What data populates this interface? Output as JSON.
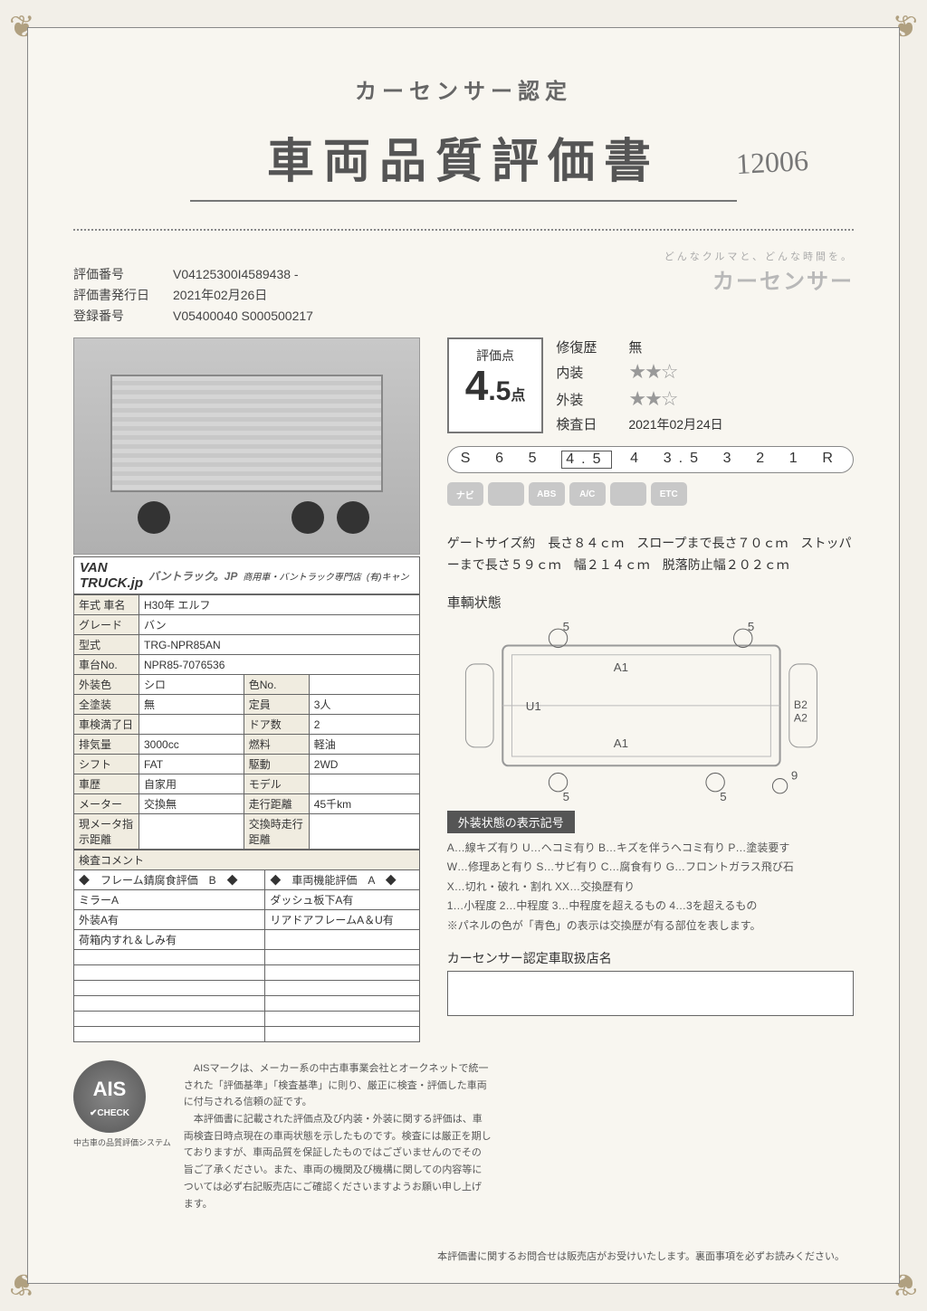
{
  "header": {
    "subtitle": "カーセンサー認定",
    "title": "車両品質評価書",
    "handwritten": "12006",
    "brand_tagline": "どんなクルマと、どんな時間を。",
    "brand_logo": "カーセンサー"
  },
  "meta": {
    "eval_no_label": "評価番号",
    "eval_no": "V04125300I4589438 -",
    "issue_date_label": "評価書発行日",
    "issue_date": "2021年02月26日",
    "reg_no_label": "登録番号",
    "reg_no": "V05400040 S000500217"
  },
  "banner": {
    "line1": "バントラック.jp",
    "logo1": "VAN",
    "logo2": "TRUCK.jp",
    "sub": "商用車・バントラック専門店",
    "tail": "(有)キャン"
  },
  "spec_rows": [
    [
      "年式 車名",
      "H30年  エルフ",
      "",
      "",
      ""
    ],
    [
      "グレード",
      "バン",
      "",
      "",
      ""
    ],
    [
      "型式",
      "TRG-NPR85AN",
      "",
      "",
      ""
    ],
    [
      "車台No.",
      "NPR85-7076536",
      "",
      "",
      ""
    ],
    [
      "外装色",
      "シロ",
      "色No.",
      "",
      ""
    ],
    [
      "全塗装",
      "無",
      "定員",
      "3人",
      ""
    ],
    [
      "車検満了日",
      "",
      "ドア数",
      "2",
      ""
    ],
    [
      "排気量",
      "3000cc",
      "燃料",
      "軽油",
      ""
    ],
    [
      "シフト",
      "FAT",
      "駆動",
      "2WD",
      ""
    ],
    [
      "車歴",
      "自家用",
      "モデル",
      "",
      ""
    ],
    [
      "メーター",
      "交換無",
      "走行距離",
      "45千km",
      ""
    ],
    [
      "現メータ指示距離",
      "",
      "交換時走行距離",
      "",
      ""
    ]
  ],
  "comment_header": "検査コメント",
  "comment_rows": [
    [
      "◆　フレーム錆腐食評価　B　◆",
      "◆　車両機能評価　A　◆"
    ],
    [
      "ミラーA",
      "ダッシュ板下A有"
    ],
    [
      "外装A有",
      "リアドアフレームA＆U有"
    ],
    [
      "荷箱内すれ＆しみ有",
      ""
    ],
    [
      "",
      ""
    ],
    [
      "",
      ""
    ],
    [
      "",
      ""
    ],
    [
      "",
      ""
    ],
    [
      "",
      ""
    ],
    [
      "",
      ""
    ]
  ],
  "score": {
    "label": "評価点",
    "value_int": "4",
    "value_dec": ".5",
    "unit": "点",
    "repair_label": "修復歴",
    "repair_value": "無",
    "interior_label": "内装",
    "interior_stars": "★★☆",
    "exterior_label": "外装",
    "exterior_stars": "★★☆",
    "inspect_label": "検査日",
    "inspect_value": "2021年02月24日"
  },
  "scale": [
    "S",
    "6",
    "5",
    "4.5",
    "4",
    "3.5",
    "3",
    "2",
    "1",
    "R"
  ],
  "scale_selected": "4.5",
  "badges": [
    "ナビ",
    "",
    "ABS",
    "A/C",
    "",
    "ETC"
  ],
  "gate_text": "ゲートサイズ約　長さ８４ｃｍ　スロープまで長さ７０ｃｍ　ストッパーまで長さ５９ｃｍ　幅２１４ｃｍ　脱落防止幅２０２ｃｍ",
  "diagram_title": "車輌状態",
  "diagram_marks": [
    "5",
    "5",
    "A1",
    "U1",
    "B2",
    "A2",
    "A1",
    "5",
    "5",
    "9"
  ],
  "legend_title": "外装状態の表示記号",
  "legend_lines": [
    "A…線キズ有り U…ヘコミ有り B…キズを伴うヘコミ有り P…塗装要す",
    "W…修理あと有り S…サビ有り C…腐食有り G…フロントガラス飛び石",
    "X…切れ・破れ・割れ XX…交換歴有り",
    "1…小程度 2…中程度 3…中程度を超えるもの 4…3を超えるもの",
    "※パネルの色が「青色」の表示は交換歴が有る部位を表します。"
  ],
  "dealer_label": "カーセンサー認定車取扱店名",
  "ais": {
    "logo_big": "AIS",
    "logo_small": "CHECK",
    "sub": "中古車の品質評価システム",
    "text": "　AISマークは、メーカー系の中古車事業会社とオークネットで統一された「評価基準」「検査基準」に則り、厳正に検査・評価した車両に付与される信頼の証です。\n　本評価書に記載された評価点及び内装・外装に関する評価は、車両検査日時点現在の車両状態を示したものです。検査には厳正を期しておりますが、車両品質を保証したものではございませんのでその旨ご了承ください。また、車両の機関及び機構に関しての内容等については必ず右記販売店にご確認くださいますようお願い申し上げます。"
  },
  "footer": "本評価書に関するお問合せは販売店がお受けいたします。裏面事項を必ずお読みください。",
  "colors": {
    "bg": "#f2efe8",
    "border": "#888888",
    "accent": "#b0a080"
  }
}
